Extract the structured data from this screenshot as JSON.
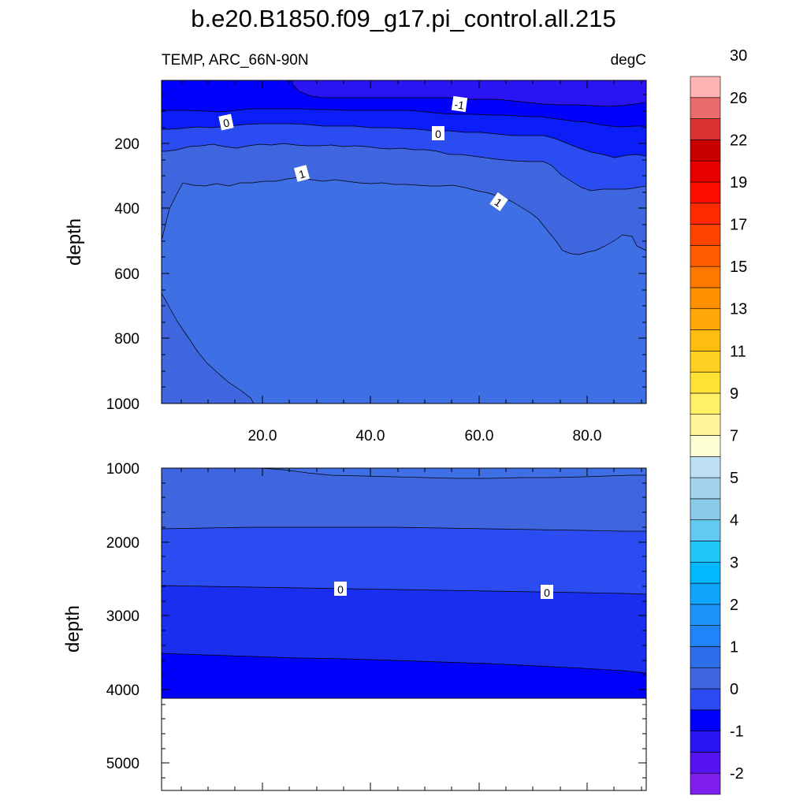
{
  "title": "b.e20.B1850.f09_g17.pi_control.all.215",
  "subtitle_left": "TEMP, ARC_66N-90N",
  "subtitle_right": "degC",
  "chart_data": [
    {
      "type": "contour",
      "panel": "upper",
      "variable": "TEMP",
      "region": "ARC_66N-90N",
      "units": "degC",
      "ylabel": "depth",
      "xlim": [
        1,
        91
      ],
      "ylim": [
        1000,
        0
      ],
      "xticks": [
        "20.0",
        "40.0",
        "60.0",
        "80.0"
      ],
      "yticks": [
        "200",
        "400",
        "600",
        "800",
        "1000"
      ],
      "contour_labels": [
        "-1",
        "0",
        "0",
        "1",
        "1"
      ],
      "regions": [
        {
          "range": "0 to 0.5 degC",
          "color": "#3f66de"
        },
        {
          "range": "0.5 to 1 degC",
          "color": "#3e6fe5"
        },
        {
          "range": "-0.5 to 0 degC",
          "color": "#2b4cf0"
        },
        {
          "range": "-1 to -0.5 degC",
          "color": "#0c1ef7"
        },
        {
          "range": "below -1 degC",
          "color": "#2a14f3"
        }
      ]
    },
    {
      "type": "contour",
      "panel": "lower",
      "ylabel": "depth",
      "ylim": [
        5400,
        1000
      ],
      "yticks": [
        "1000",
        "2000",
        "3000",
        "4000",
        "5000"
      ],
      "ocean_bottom": 4100,
      "contour_labels": [
        "0",
        "0"
      ],
      "regions": [
        {
          "range": "0 to 0.5 degC",
          "color": "#3f66de"
        },
        {
          "range": "-0.5 to 0 degC",
          "color": "#2b4cf0"
        },
        {
          "range": "-1 to -0.5 degC",
          "color": "#1a2ef0"
        },
        {
          "range": "below -1 degC",
          "color": "#0000fb"
        }
      ]
    }
  ],
  "colorbar": {
    "labels": [
      "-2",
      "-1",
      "0",
      "1",
      "2",
      "3",
      "4",
      "5",
      "7",
      "9",
      "11",
      "13",
      "15",
      "17",
      "19",
      "22",
      "26",
      "30"
    ],
    "colors": [
      "#7f1fec",
      "#5713f0",
      "#2a14f3",
      "#0000fb",
      "#2b4cf0",
      "#3f66de",
      "#2d6fea",
      "#1e84f7",
      "#1c93fa",
      "#0fa5fb",
      "#00b8fb",
      "#22c7f8",
      "#62c9f1",
      "#8ccceb",
      "#a3d4ec",
      "#bde0f2",
      "#ffffd5",
      "#fff59b",
      "#fff066",
      "#ffe233",
      "#ffd021",
      "#ffbd11",
      "#ffa808",
      "#ff9100",
      "#ff7800",
      "#ff5e00",
      "#ff4400",
      "#ff2a00",
      "#ff0d00",
      "#e80000",
      "#c80000",
      "#da3232",
      "#eb6b6b",
      "#ffb3b3"
    ]
  }
}
